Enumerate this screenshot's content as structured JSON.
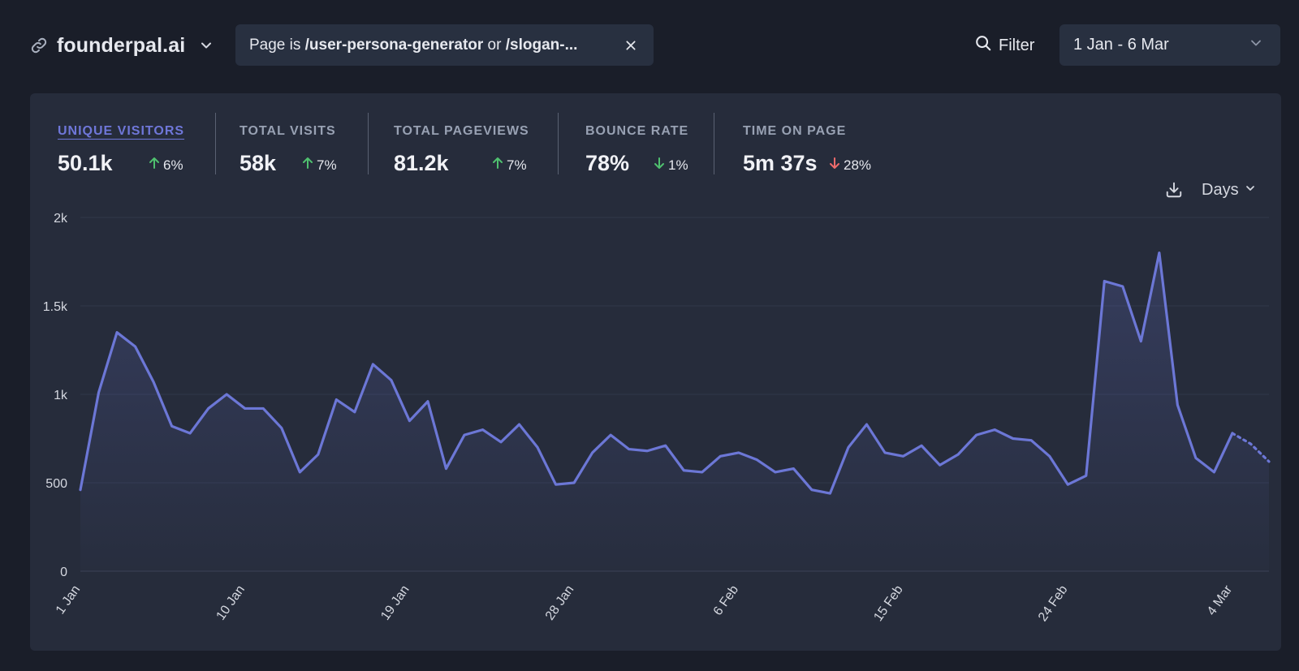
{
  "header": {
    "site_name": "founderpal.ai",
    "filter_prefix": "Page is ",
    "filter_path1": "/user-persona-generator",
    "filter_or": " or ",
    "filter_path2": "/slogan-...",
    "filter_button": "Filter",
    "date_range": "1 Jan - 6 Mar"
  },
  "stats": [
    {
      "label": "UNIQUE VISITORS",
      "value": "50.1k",
      "change": "6%",
      "direction": "up",
      "active": true
    },
    {
      "label": "TOTAL VISITS",
      "value": "58k",
      "change": "7%",
      "direction": "up",
      "active": false
    },
    {
      "label": "TOTAL PAGEVIEWS",
      "value": "81.2k",
      "change": "7%",
      "direction": "up",
      "active": false
    },
    {
      "label": "BOUNCE RATE",
      "value": "78%",
      "change": "1%",
      "direction": "down",
      "active": false
    },
    {
      "label": "TIME ON PAGE",
      "value": "5m 37s",
      "change": "28%",
      "direction": "down",
      "active": false
    }
  ],
  "chart_tools": {
    "interval": "Days"
  },
  "colors": {
    "line": "#6c77d6",
    "good": "#4fc06f",
    "bad": "#ef6b6b",
    "accent": "#6f77d9"
  },
  "chart_data": {
    "type": "line",
    "title": "",
    "xlabel": "",
    "ylabel": "",
    "ylim": [
      0,
      2000
    ],
    "y_ticks": [
      0,
      500,
      1000,
      1500,
      2000
    ],
    "y_tick_labels": [
      "0",
      "500",
      "1k",
      "1.5k",
      "2k"
    ],
    "x_ticks": [
      {
        "index": 0,
        "label": "1 Jan"
      },
      {
        "index": 9,
        "label": "10 Jan"
      },
      {
        "index": 18,
        "label": "19 Jan"
      },
      {
        "index": 27,
        "label": "28 Jan"
      },
      {
        "index": 36,
        "label": "6 Feb"
      },
      {
        "index": 45,
        "label": "15 Feb"
      },
      {
        "index": 54,
        "label": "24 Feb"
      },
      {
        "index": 63,
        "label": "4 Mar"
      }
    ],
    "series": [
      {
        "name": "Unique visitors",
        "values": [
          460,
          1010,
          1350,
          1270,
          1070,
          820,
          780,
          920,
          1000,
          920,
          920,
          810,
          560,
          660,
          970,
          900,
          1170,
          1080,
          850,
          960,
          580,
          770,
          800,
          730,
          830,
          700,
          490,
          500,
          670,
          770,
          690,
          680,
          710,
          570,
          560,
          650,
          670,
          630,
          560,
          580,
          460,
          440,
          700,
          830,
          670,
          650,
          710,
          600,
          660,
          770,
          800,
          750,
          740,
          650,
          490,
          540,
          1640,
          1610,
          1300,
          1800,
          940,
          640,
          560,
          780,
          720,
          620
        ],
        "projected_from": 64
      }
    ]
  }
}
